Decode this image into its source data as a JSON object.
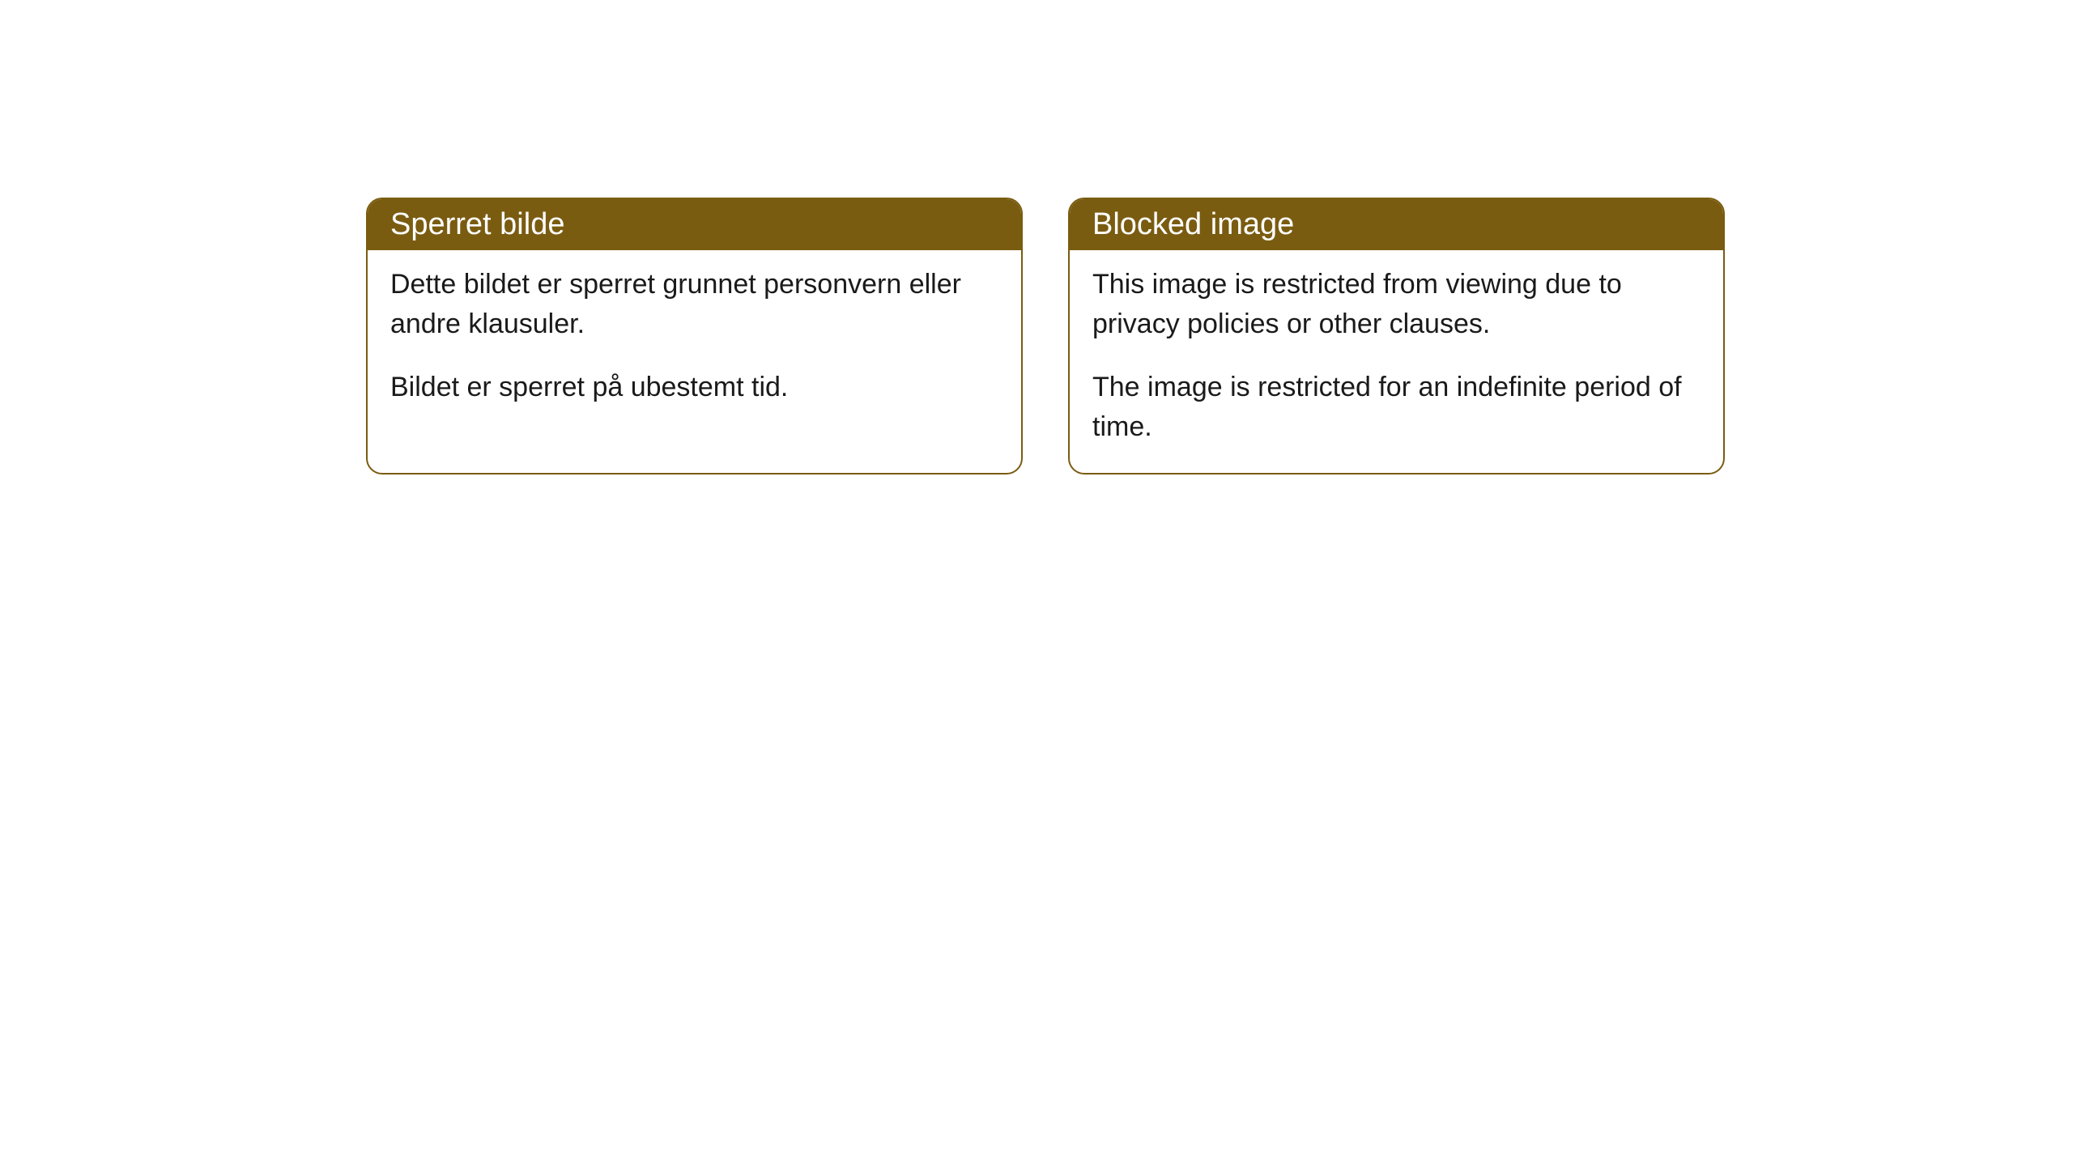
{
  "cards": [
    {
      "title": "Sperret bilde",
      "paragraph1": "Dette bildet er sperret grunnet personvern eller andre klausuler.",
      "paragraph2": "Bildet er sperret på ubestemt tid."
    },
    {
      "title": "Blocked image",
      "paragraph1": "This image is restricted from viewing due to privacy policies or other clauses.",
      "paragraph2": "The image is restricted for an indefinite period of time."
    }
  ],
  "style": {
    "header_bg_color": "#7a5c11",
    "header_text_color": "#ffffff",
    "card_border_color": "#7a5c11",
    "card_bg_color": "#ffffff",
    "body_text_color": "#1a1a1a",
    "border_radius": 20,
    "header_fontsize": 38,
    "body_fontsize": 34
  }
}
